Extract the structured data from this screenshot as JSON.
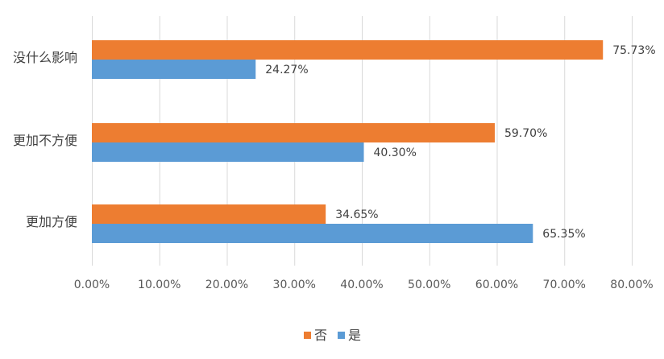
{
  "chart_data": {
    "type": "bar",
    "orientation": "horizontal",
    "categories": [
      "没什么影响",
      "更加不方便",
      "更加方便"
    ],
    "series": [
      {
        "name": "否",
        "values": [
          75.73,
          59.7,
          34.65
        ],
        "color": "#ED7D31"
      },
      {
        "name": "是",
        "values": [
          24.27,
          40.3,
          65.35
        ],
        "color": "#5B9BD5"
      }
    ],
    "data_labels": [
      [
        "75.73%",
        "59.70%",
        "34.65%"
      ],
      [
        "24.27%",
        "40.30%",
        "65.35%"
      ]
    ],
    "xticks": [
      0,
      10,
      20,
      30,
      40,
      50,
      60,
      70,
      80
    ],
    "xtick_labels": [
      "0.00%",
      "10.00%",
      "20.00%",
      "30.00%",
      "40.00%",
      "50.00%",
      "60.00%",
      "70.00%",
      "80.00%"
    ],
    "xlim": [
      0,
      80
    ],
    "grid": true,
    "legend_position": "bottom",
    "title": "",
    "xlabel": "",
    "ylabel": ""
  }
}
